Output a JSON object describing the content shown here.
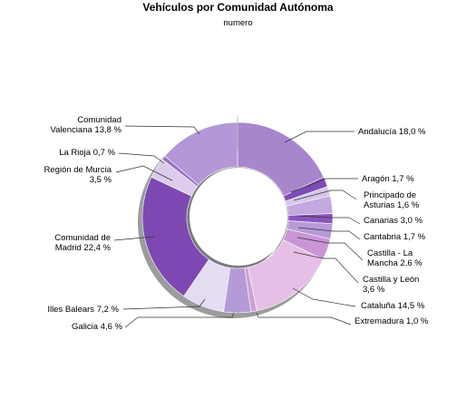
{
  "chart_data": {
    "type": "pie",
    "variant": "donut",
    "title": "Vehículos por Comunidad Autónoma",
    "subtitle": "numero",
    "legend": "none",
    "slices": [
      {
        "name": "Andalucía",
        "value": 18.0,
        "label": "Andalucía 18,0 %",
        "color": "#a886cc"
      },
      {
        "name": "Aragón",
        "value": 1.7,
        "label": "Aragón 1,7 %",
        "color": "#7e4cb5"
      },
      {
        "name": "Principado de Asturias",
        "value": 1.6,
        "label": "Principado de Asturias 1,6 %",
        "color": "#d7c6ea"
      },
      {
        "name": "Canarias",
        "value": 3.0,
        "label": "Canarias 3,0 %",
        "color": "#c4a8e0"
      },
      {
        "name": "Cantabria",
        "value": 1.7,
        "label": "Cantabria 1,7 %",
        "color": "#8a55bf"
      },
      {
        "name": "Castilla - La Mancha",
        "value": 2.6,
        "label": "Castilla - La Mancha 2,6 %",
        "color": "#b79ad8"
      },
      {
        "name": "Castilla y León",
        "value": 3.6,
        "label": "Castilla y León 3,6 %",
        "color": "#c995d6"
      },
      {
        "name": "Cataluña",
        "value": 14.5,
        "label": "Cataluña 14,5 %",
        "color": "#e6bfe6"
      },
      {
        "name": "Extremadura",
        "value": 1.0,
        "label": "Extremadura 1,0 %",
        "color": "#cf9fd6"
      },
      {
        "name": "Galicia",
        "value": 4.6,
        "label": "Galicia 4,6 %",
        "color": "#b49bd8"
      },
      {
        "name": "Illes Balears",
        "value": 7.2,
        "label": "Illes Balears 7,2 %",
        "color": "#e4dcf0"
      },
      {
        "name": "Comunidad de Madrid",
        "value": 22.4,
        "label": "Comunidad de Madrid 22,4 %",
        "color": "#7d48b2"
      },
      {
        "name": "Región de Murcia",
        "value": 3.5,
        "label": "Región de Murcia 3,5 %",
        "color": "#dcccec"
      },
      {
        "name": "La Rioja",
        "value": 0.7,
        "label": "La Rioja 0,7 %",
        "color": "#9a72c4"
      },
      {
        "name": "Comunidad Valenciana",
        "value": 13.8,
        "label": "Comunidad Valenciana 13,8 %",
        "color": "#b397d6"
      }
    ]
  }
}
